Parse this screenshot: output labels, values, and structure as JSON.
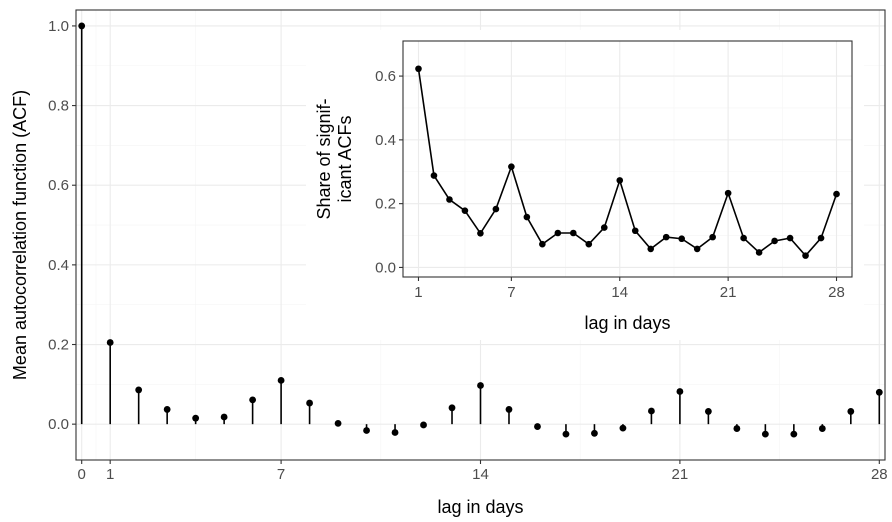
{
  "chart_data": [
    {
      "type": "lollipop",
      "xlabel": "lag in days",
      "ylabel": "Mean autocorrelation function (ACF)",
      "xlim": [
        -0.2,
        28.2
      ],
      "ylim": [
        -0.09,
        1.04
      ],
      "xticks": [
        0,
        1,
        7,
        14,
        21,
        28
      ],
      "xtick_labels": [
        "0",
        "1",
        "7",
        "14",
        "21",
        "28"
      ],
      "yticks": [
        0.0,
        0.2,
        0.4,
        0.6,
        0.8,
        1.0
      ],
      "ytick_labels": [
        "0.0",
        "0.2",
        "0.4",
        "0.6",
        "0.8",
        "1.0"
      ],
      "grid": true,
      "x": [
        0,
        1,
        2,
        3,
        4,
        5,
        6,
        7,
        8,
        9,
        10,
        11,
        12,
        13,
        14,
        15,
        16,
        17,
        18,
        19,
        20,
        21,
        22,
        23,
        24,
        25,
        26,
        27,
        28
      ],
      "values": [
        1.0,
        0.205,
        0.086,
        0.037,
        0.015,
        0.018,
        0.061,
        0.11,
        0.053,
        0.002,
        -0.016,
        -0.021,
        -0.002,
        0.041,
        0.097,
        0.037,
        -0.006,
        -0.025,
        -0.023,
        -0.01,
        0.033,
        0.082,
        0.032,
        -0.011,
        -0.025,
        -0.025,
        -0.011,
        0.032,
        0.08
      ]
    },
    {
      "type": "line",
      "xlabel": "lag in days",
      "ylabel": "Share of signif-\nicant ACFs",
      "xlim": [
        0,
        29
      ],
      "ylim": [
        -0.03,
        0.71
      ],
      "xticks": [
        1,
        7,
        14,
        21,
        28
      ],
      "xtick_labels": [
        "1",
        "7",
        "14",
        "21",
        "28"
      ],
      "yticks": [
        0.0,
        0.2,
        0.4,
        0.6
      ],
      "ytick_labels": [
        "0.0",
        "0.2",
        "0.4",
        "0.6"
      ],
      "grid": true,
      "x": [
        1,
        2,
        3,
        4,
        5,
        6,
        7,
        8,
        9,
        10,
        11,
        12,
        13,
        14,
        15,
        16,
        17,
        18,
        19,
        20,
        21,
        22,
        23,
        24,
        25,
        26,
        27,
        28
      ],
      "values": [
        0.623,
        0.288,
        0.213,
        0.178,
        0.107,
        0.183,
        0.316,
        0.158,
        0.073,
        0.108,
        0.108,
        0.073,
        0.125,
        0.273,
        0.115,
        0.058,
        0.095,
        0.09,
        0.058,
        0.095,
        0.233,
        0.092,
        0.047,
        0.083,
        0.092,
        0.037,
        0.092,
        0.23
      ]
    }
  ],
  "colors": {
    "grid_major": "#ebebeb",
    "grid_minor": "#f5f5f5",
    "panel_border": "#333333",
    "tick": "#333333",
    "point": "#000000",
    "background": "#ffffff"
  }
}
